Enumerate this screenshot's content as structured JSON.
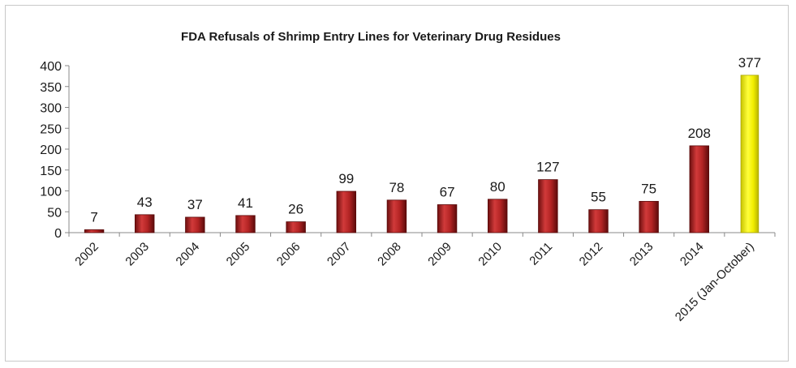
{
  "chart_data": {
    "type": "bar",
    "title": "FDA Refusals of Shrimp Entry Lines for Veterinary Drug Residues",
    "xlabel": "",
    "ylabel": "",
    "ylim": [
      0,
      400
    ],
    "yticks": [
      0,
      50,
      100,
      150,
      200,
      250,
      300,
      350,
      400
    ],
    "categories": [
      "2002",
      "2003",
      "2004",
      "2005",
      "2006",
      "2007",
      "2008",
      "2009",
      "2010",
      "2011",
      "2012",
      "2013",
      "2014",
      "2015 (Jan-October)"
    ],
    "values": [
      7,
      43,
      37,
      41,
      26,
      99,
      78,
      67,
      80,
      127,
      55,
      75,
      208,
      377
    ],
    "data_labels": [
      "7",
      "43",
      "37",
      "41",
      "26",
      "99",
      "78",
      "67",
      "80",
      "127",
      "55",
      "75",
      "208",
      "377"
    ],
    "colors": {
      "default_bar": "#a31f1f",
      "highlight_bar": "#f5f500",
      "highlight_index": 13
    },
    "grid": false,
    "legend": "none"
  }
}
